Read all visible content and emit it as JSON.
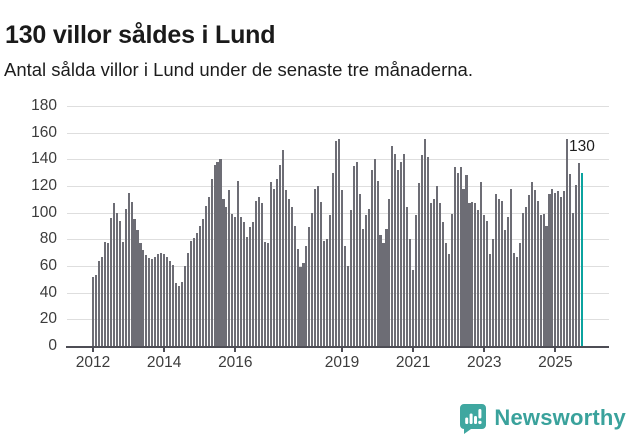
{
  "header": {
    "title": "130 villor såldes i Lund",
    "subtitle": "Antal sålda villor i Lund under de senaste tre månaderna."
  },
  "chart_data": {
    "type": "bar",
    "title": "130 villor såldes i Lund",
    "subtitle": "Antal sålda villor i Lund under de senaste tre månaderna.",
    "x_unit": "month",
    "x_start": "2012-01",
    "x_end": "2025-10",
    "ylim": [
      0,
      180
    ],
    "y_ticks": [
      0,
      20,
      40,
      60,
      80,
      100,
      120,
      140,
      160,
      180
    ],
    "grid": "horizontal",
    "legend_position": "none",
    "x_tick_labels": [
      {
        "label": "2012",
        "index": 0
      },
      {
        "label": "2014",
        "index": 24
      },
      {
        "label": "2016",
        "index": 48
      },
      {
        "label": "2019",
        "index": 84
      },
      {
        "label": "2021",
        "index": 108
      },
      {
        "label": "2023",
        "index": 132
      },
      {
        "label": "2025",
        "index": 156
      }
    ],
    "values": [
      52,
      53,
      64,
      67,
      78,
      77,
      96,
      107,
      100,
      94,
      78,
      103,
      115,
      108,
      95,
      87,
      77,
      72,
      68,
      66,
      65,
      67,
      69,
      70,
      69,
      67,
      64,
      61,
      47,
      45,
      48,
      60,
      70,
      79,
      81,
      85,
      90,
      95,
      105,
      112,
      125,
      136,
      138,
      140,
      110,
      104,
      117,
      99,
      97,
      124,
      97,
      93,
      82,
      89,
      93,
      109,
      112,
      107,
      78,
      77,
      123,
      118,
      125,
      136,
      147,
      117,
      110,
      104,
      90,
      73,
      59,
      62,
      75,
      89,
      100,
      118,
      120,
      108,
      79,
      80,
      98,
      130,
      154,
      155,
      117,
      75,
      60,
      102,
      135,
      138,
      114,
      88,
      98,
      103,
      132,
      140,
      124,
      83,
      77,
      88,
      110,
      150,
      144,
      132,
      138,
      144,
      104,
      80,
      57,
      98,
      122,
      143,
      155,
      142,
      107,
      110,
      120,
      107,
      93,
      77,
      69,
      99,
      134,
      130,
      134,
      118,
      128,
      107,
      108,
      107,
      102,
      123,
      98,
      94,
      69,
      80,
      114,
      110,
      109,
      87,
      97,
      118,
      70,
      67,
      77,
      100,
      104,
      113,
      123,
      117,
      109,
      98,
      99,
      90,
      114,
      118,
      115,
      116,
      112,
      116,
      155,
      129,
      100,
      121,
      137,
      130
    ],
    "highlight": {
      "index": 165,
      "value": 130,
      "label": "130"
    },
    "colors": {
      "bar": "#6d6d75",
      "highlight": "#0ba39f",
      "grid": "#dedede",
      "axis": "#4d4d55",
      "tick_text": "#3c3c3c",
      "brand": "#3aa29c"
    }
  },
  "footer": {
    "brand": "Newsworthy"
  }
}
